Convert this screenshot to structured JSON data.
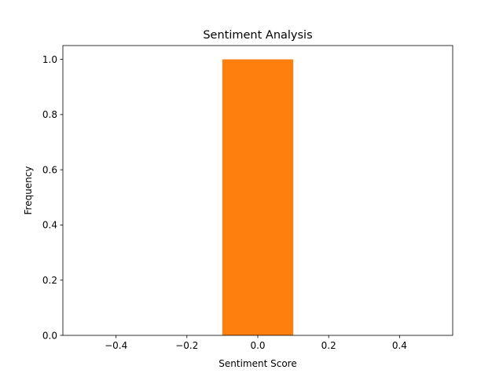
{
  "chart_data": {
    "type": "bar",
    "title": "Sentiment Analysis",
    "xlabel": "Sentiment Score",
    "ylabel": "Frequency",
    "xlim": [
      -0.55,
      0.55
    ],
    "ylim": [
      0,
      1.05
    ],
    "xticks": [
      -0.4,
      -0.2,
      0.0,
      0.2,
      0.4
    ],
    "xtick_labels": [
      "−0.4",
      "−0.2",
      "0.0",
      "0.2",
      "0.4"
    ],
    "yticks": [
      0.0,
      0.2,
      0.4,
      0.6,
      0.8,
      1.0
    ],
    "ytick_labels": [
      "0.0",
      "0.2",
      "0.4",
      "0.6",
      "0.8",
      "1.0"
    ],
    "grid": false,
    "bars": [
      {
        "x_start": -0.1,
        "x_end": 0.1,
        "value": 1.0
      }
    ],
    "colors": {
      "bar": "#ff7f0e",
      "axes": "#000000",
      "background": "#ffffff"
    }
  }
}
